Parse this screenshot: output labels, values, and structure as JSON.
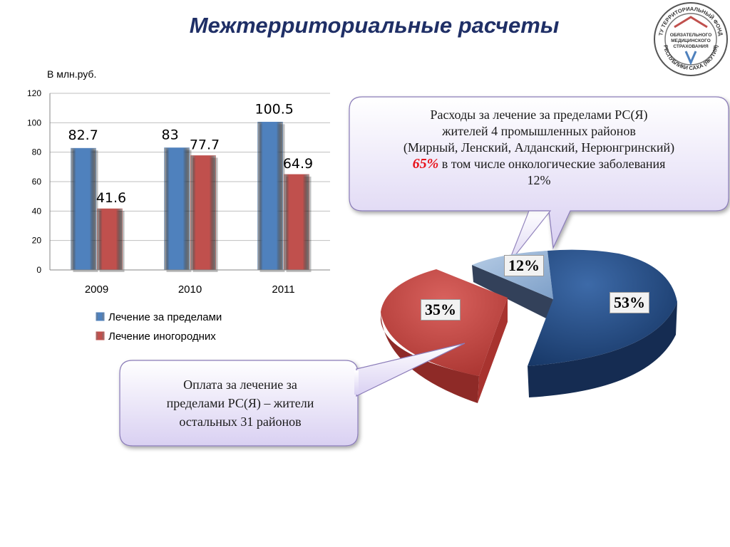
{
  "page": {
    "title": "Межтерриториальные расчеты",
    "unit_label": "В млн.руб."
  },
  "logo": {
    "text_top": "ТУ ТЕРРИТОРИАЛЬНЫЙ ФОНД",
    "text_bottom": "РЕСПУБЛИКИ САХА (ЯКУТИЯ)",
    "text_center_1": "ОБЯЗАТЕЛЬНОГО",
    "text_center_2": "МЕДИЦИНСКОГО",
    "text_center_3": "СТРАХОВАНИЯ"
  },
  "callouts": {
    "top_line1": "Расходы за лечение за пределами РС(Я)",
    "top_line2": "жителей 4 промышленных районов",
    "top_line3": "(Мирный, Ленский, Алданский, Нерюнгринский)",
    "top_pct": "65%",
    "top_line4": " в том числе онкологические заболевания",
    "top_line5": "12%",
    "bottom_line1": "Оплата за лечение за",
    "bottom_line2": "пределами РС(Я) – жители",
    "bottom_line3": "остальных 31 районов"
  },
  "chart_data": [
    {
      "type": "bar",
      "categories": [
        "2009",
        "2010",
        "2011"
      ],
      "series": [
        {
          "name": "Лечение за пределами",
          "values": [
            82.7,
            83,
            100.5
          ],
          "labels": [
            "82.7",
            "83",
            "100.5"
          ],
          "color": "#4f81bd"
        },
        {
          "name": "Лечение иногородних",
          "values": [
            41.6,
            77.7,
            64.9
          ],
          "labels": [
            "41.6",
            "77.7",
            "64.9"
          ],
          "color": "#c0504d"
        }
      ],
      "ylim": [
        0,
        120
      ],
      "yticks": [
        "0",
        "20",
        "40",
        "60",
        "80",
        "100",
        "120"
      ],
      "grid": true,
      "legend": "bottom"
    },
    {
      "type": "pie",
      "slices": [
        {
          "label": "53%",
          "value": 53,
          "color": "#1f497d"
        },
        {
          "label": "35%",
          "value": 35,
          "color": "#c0504d"
        },
        {
          "label": "12%",
          "value": 12,
          "color": "#8eb4e3"
        }
      ]
    }
  ]
}
